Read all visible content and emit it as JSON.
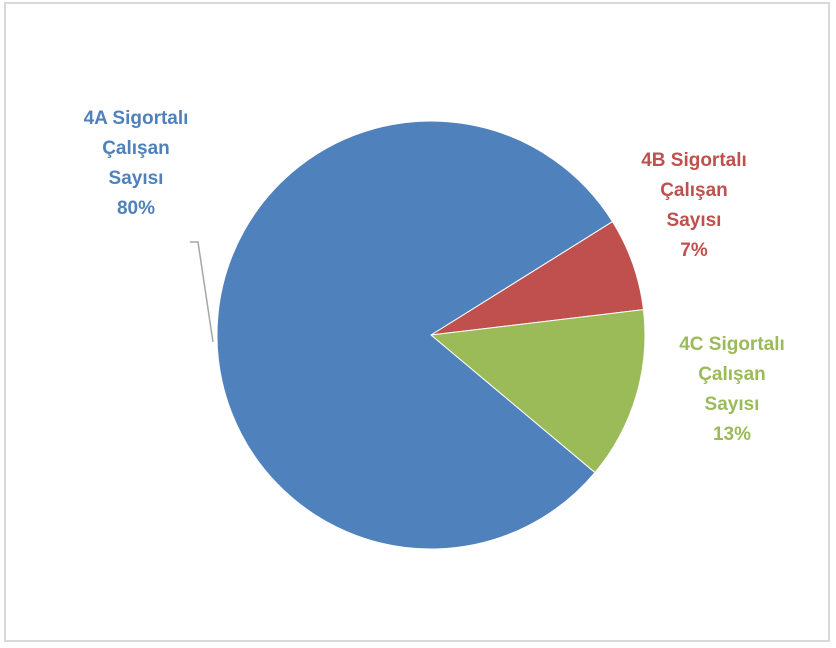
{
  "chart_data": {
    "type": "pie",
    "title": "",
    "slices": [
      {
        "name_lines": [
          "4A Sigortalı",
          "Çalışan",
          "Sayısı"
        ],
        "percent_label": "80%",
        "value": 80,
        "color": "#4f81bd"
      },
      {
        "name_lines": [
          "4B Sigortalı",
          "Çalışan",
          "Sayısı"
        ],
        "percent_label": "7%",
        "value": 7,
        "color": "#c0504d"
      },
      {
        "name_lines": [
          "4C Sigortalı",
          "Çalışan",
          "Sayısı"
        ],
        "percent_label": "13%",
        "value": 13,
        "color": "#9bbb59"
      }
    ],
    "legend": "none",
    "data_labels": "outside"
  }
}
